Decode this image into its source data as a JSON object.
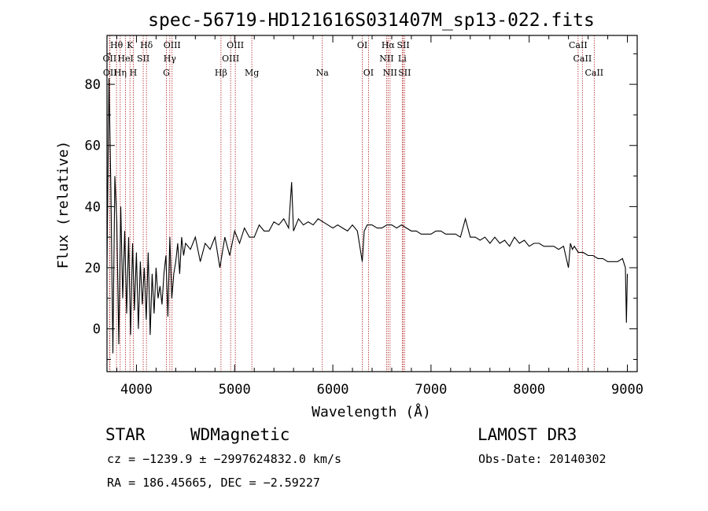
{
  "chart_data": {
    "type": "line",
    "title": "spec-56719-HD121616S031407M_sp13-022.fits",
    "xlabel": "Wavelength (Å)",
    "ylabel": "Flux (relative)",
    "xlim": [
      3700,
      9100
    ],
    "ylim": [
      -14,
      96
    ],
    "x_ticks": [
      4000,
      5000,
      6000,
      7000,
      8000,
      9000
    ],
    "y_ticks": [
      0,
      20,
      40,
      60,
      80
    ],
    "grid": false,
    "series": [
      {
        "x": [
          3700,
          3720,
          3740,
          3760,
          3780,
          3800,
          3820,
          3840,
          3860,
          3880,
          3900,
          3920,
          3940,
          3960,
          3980,
          4000,
          4020,
          4040,
          4060,
          4080,
          4100,
          4120,
          4140,
          4160,
          4180,
          4200,
          4220,
          4240,
          4260,
          4280,
          4300,
          4320,
          4340,
          4360,
          4380,
          4400,
          4420,
          4440,
          4460,
          4480,
          4500,
          4550,
          4600,
          4650,
          4700,
          4750,
          4800,
          4850,
          4900,
          4950,
          5000,
          5050,
          5100,
          5150,
          5200,
          5250,
          5300,
          5350,
          5400,
          5450,
          5500,
          5550,
          5580,
          5600,
          5650,
          5700,
          5750,
          5800,
          5850,
          5900,
          5950,
          6000,
          6050,
          6100,
          6150,
          6200,
          6250,
          6300,
          6320,
          6350,
          6400,
          6450,
          6500,
          6550,
          6600,
          6650,
          6700,
          6750,
          6800,
          6850,
          6900,
          6950,
          7000,
          7050,
          7100,
          7150,
          7200,
          7250,
          7300,
          7350,
          7400,
          7450,
          7500,
          7550,
          7600,
          7650,
          7700,
          7750,
          7800,
          7850,
          7900,
          7950,
          8000,
          8050,
          8100,
          8150,
          8200,
          8250,
          8300,
          8350,
          8400,
          8420,
          8440,
          8460,
          8500,
          8550,
          8600,
          8650,
          8700,
          8750,
          8800,
          8850,
          8900,
          8950,
          8980,
          8990,
          9000
        ],
        "y": [
          20,
          82,
          45,
          -8,
          50,
          35,
          -5,
          40,
          10,
          32,
          5,
          30,
          -2,
          28,
          6,
          25,
          0,
          22,
          8,
          20,
          3,
          25,
          -2,
          18,
          5,
          20,
          10,
          14,
          8,
          18,
          24,
          4,
          30,
          10,
          18,
          22,
          28,
          18,
          30,
          24,
          28,
          26,
          30,
          22,
          28,
          26,
          30,
          20,
          30,
          24,
          32,
          28,
          33,
          30,
          30,
          34,
          32,
          32,
          35,
          34,
          36,
          33,
          48,
          32,
          36,
          34,
          35,
          34,
          36,
          35,
          34,
          33,
          34,
          33,
          32,
          34,
          32,
          22,
          32,
          34,
          34,
          33,
          33,
          34,
          34,
          33,
          34,
          33,
          32,
          32,
          31,
          31,
          31,
          32,
          32,
          31,
          31,
          31,
          30,
          36,
          30,
          30,
          29,
          30,
          28,
          30,
          28,
          29,
          27,
          30,
          28,
          29,
          27,
          28,
          28,
          27,
          27,
          27,
          26,
          27,
          20,
          28,
          26,
          27,
          25,
          25,
          24,
          24,
          23,
          23,
          22,
          22,
          22,
          23,
          20,
          2,
          18
        ]
      }
    ],
    "spectral_lines": [
      {
        "label": "Hθ",
        "row": 1,
        "x": 3797
      },
      {
        "label": "K",
        "row": 1,
        "x": 3934
      },
      {
        "label": "Hδ",
        "row": 1,
        "x": 4102
      },
      {
        "label": "OIII",
        "row": 1,
        "x": 4363
      },
      {
        "label": "OIII",
        "row": 1,
        "x": 5007
      },
      {
        "label": "OI",
        "row": 1,
        "x": 6300
      },
      {
        "label": "Hα",
        "row": 1,
        "x": 6563
      },
      {
        "label": "SII",
        "row": 1,
        "x": 6717
      },
      {
        "label": "CaII",
        "row": 1,
        "x": 8498
      },
      {
        "label": "OII",
        "row": 2,
        "x": 3727
      },
      {
        "label": "HeI",
        "row": 2,
        "x": 3889
      },
      {
        "label": "SII",
        "row": 2,
        "x": 4069
      },
      {
        "label": "Hγ",
        "row": 2,
        "x": 4340
      },
      {
        "label": "OIII",
        "row": 2,
        "x": 4959
      },
      {
        "label": "NII",
        "row": 2,
        "x": 6548
      },
      {
        "label": "Li",
        "row": 2,
        "x": 6707
      },
      {
        "label": "CaII",
        "row": 2,
        "x": 8542
      },
      {
        "label": "OII",
        "row": 3,
        "x": 3730
      },
      {
        "label": "Hη",
        "row": 3,
        "x": 3835
      },
      {
        "label": "H",
        "row": 3,
        "x": 3968
      },
      {
        "label": "G",
        "row": 3,
        "x": 4305
      },
      {
        "label": "Hβ",
        "row": 3,
        "x": 4861
      },
      {
        "label": "Mg",
        "row": 3,
        "x": 5175
      },
      {
        "label": "Na",
        "row": 3,
        "x": 5893
      },
      {
        "label": "OI",
        "row": 3,
        "x": 6363
      },
      {
        "label": "NII",
        "row": 3,
        "x": 6583
      },
      {
        "label": "SII",
        "row": 3,
        "x": 6731
      },
      {
        "label": "CaII",
        "row": 3,
        "x": 8662
      }
    ],
    "colors": {
      "line_markers": "#b22222",
      "spectrum": "#000000"
    }
  },
  "info": {
    "class": "STAR",
    "subclass": "WDMagnetic",
    "survey": "LAMOST DR3",
    "cz": "cz = −1239.9 ± −2997624832.0 km/s",
    "obs_date": "Obs-Date: 20140302",
    "radec": "RA = 186.45665, DEC =  −2.59227"
  }
}
